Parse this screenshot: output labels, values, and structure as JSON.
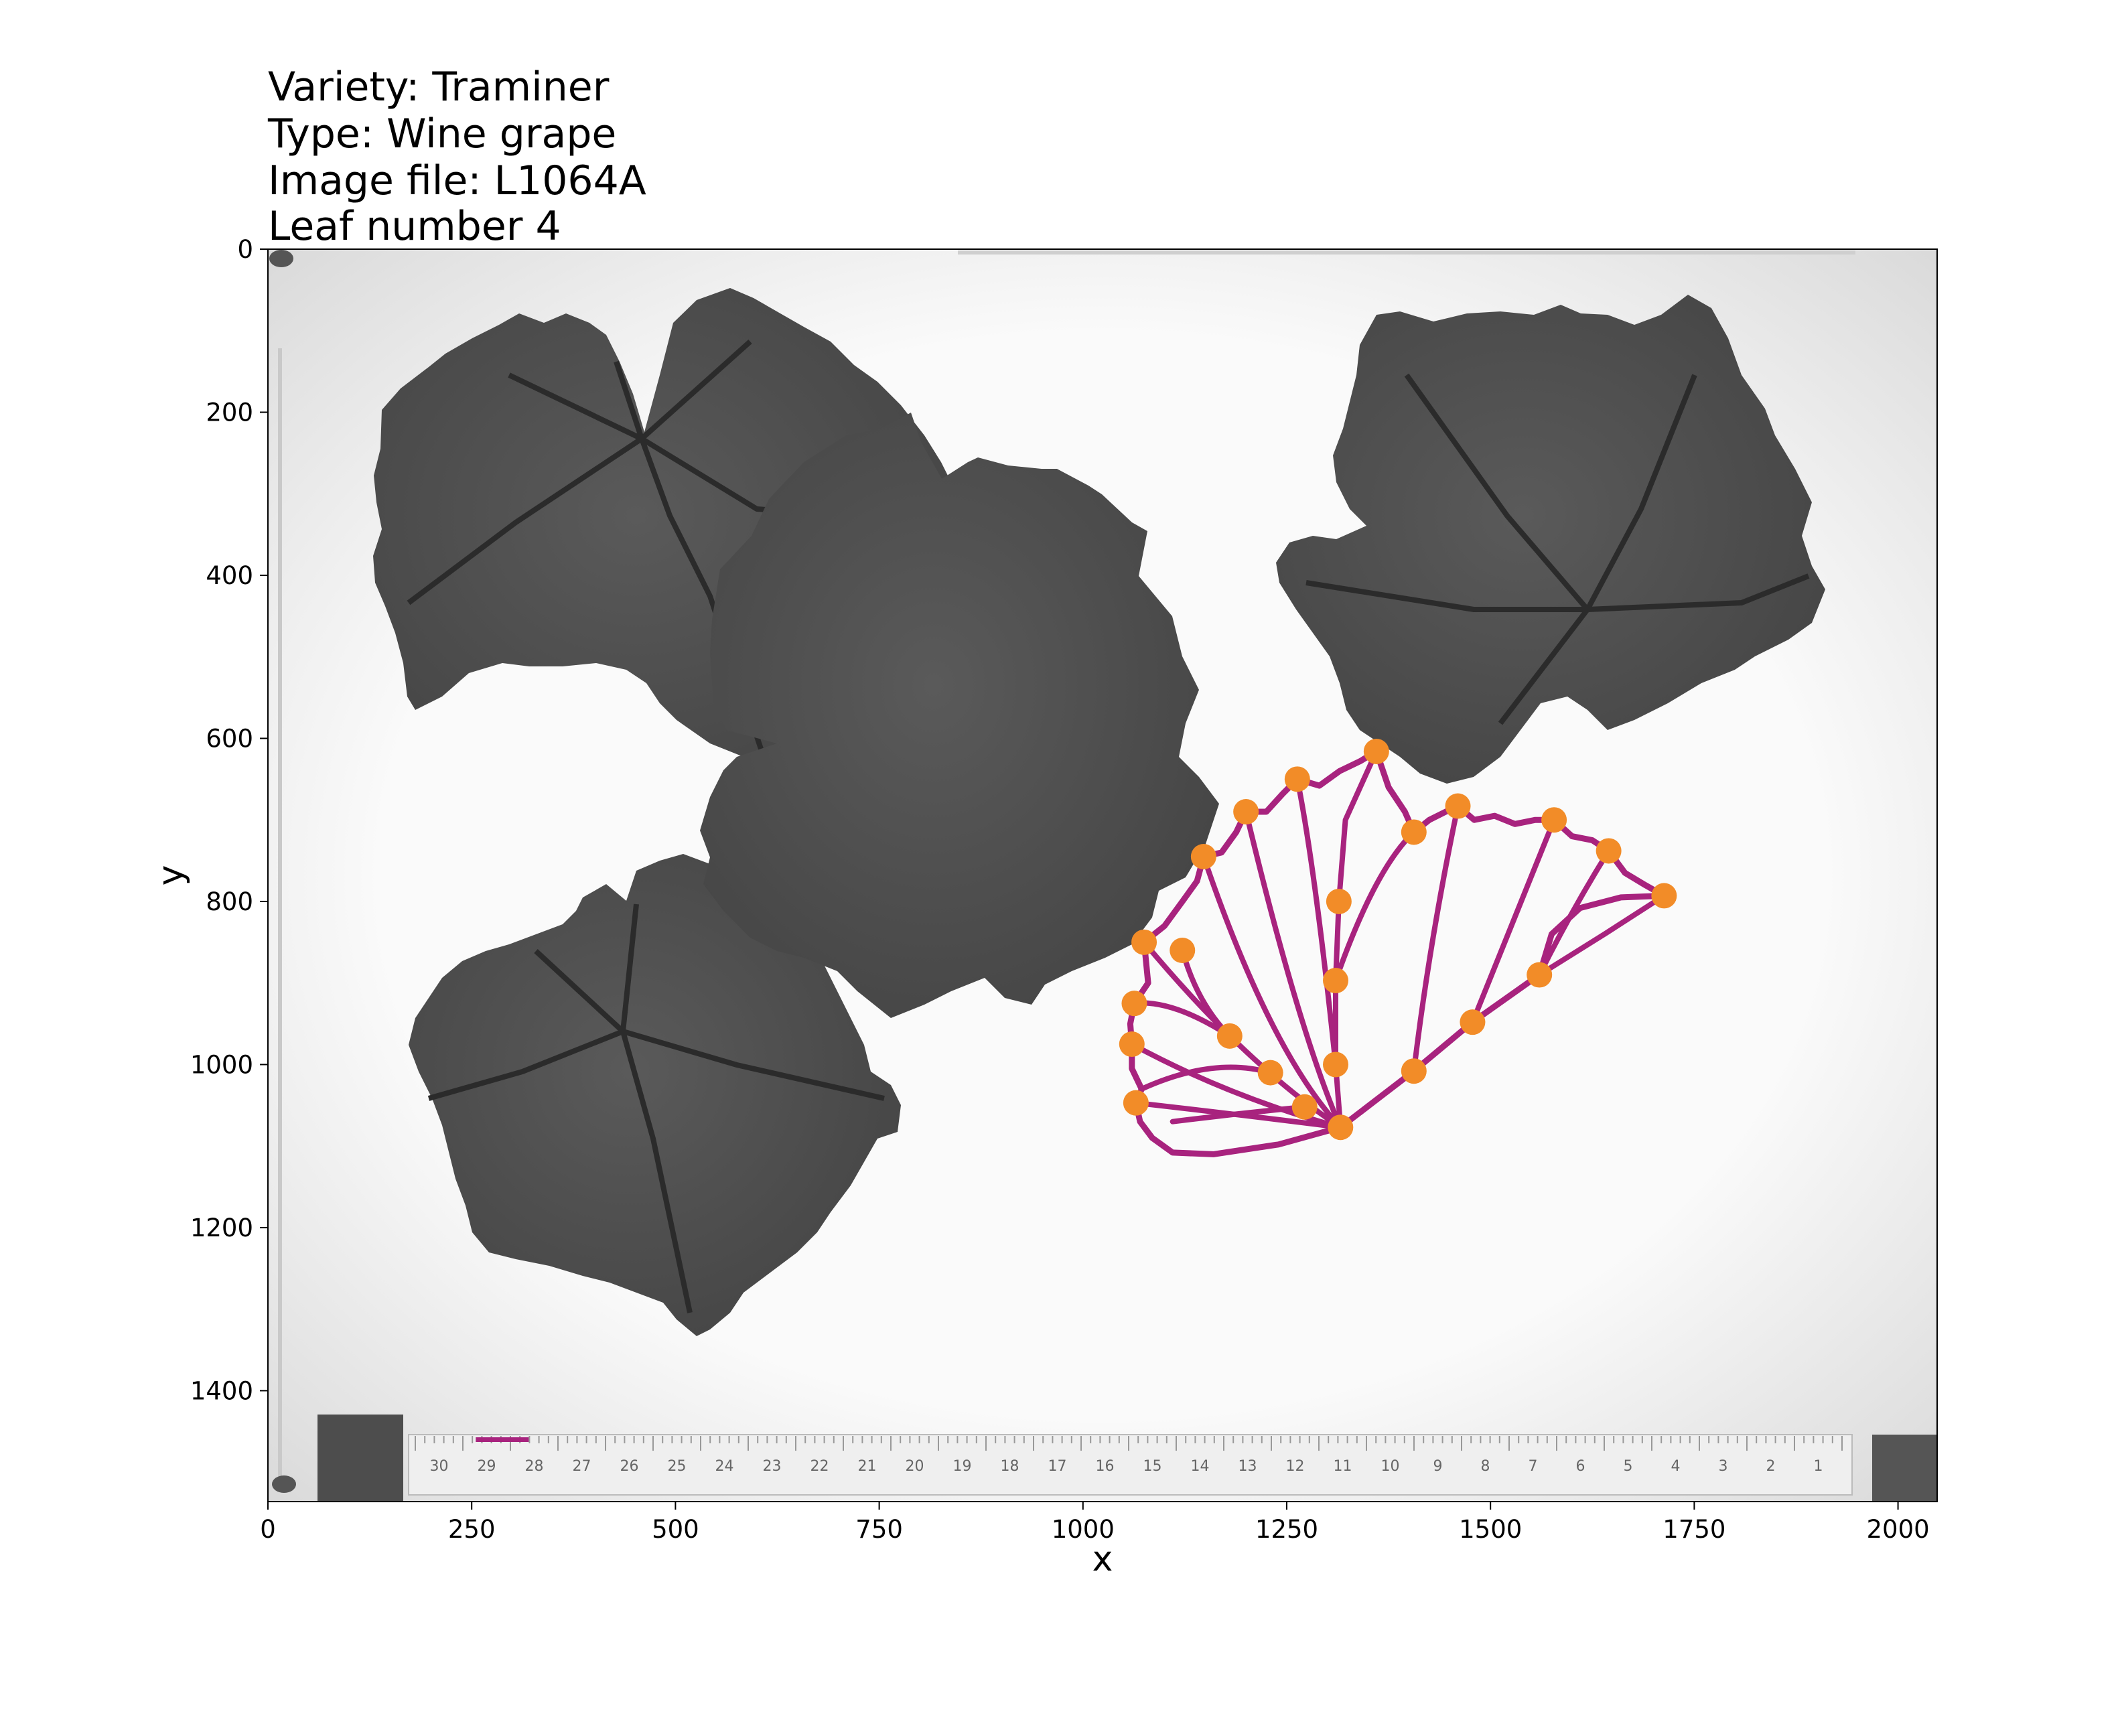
{
  "title_lines": [
    "Variety: Traminer",
    "Type: Wine grape",
    "Image file: L1064A",
    "Leaf number 4"
  ],
  "chart_data": {
    "type": "scatter",
    "xlabel": "x",
    "ylabel": "y",
    "xlim": [
      0,
      2048
    ],
    "ylim": [
      1536,
      0
    ],
    "x_ticks": [
      0,
      250,
      500,
      750,
      1000,
      1250,
      1500,
      1750,
      2000
    ],
    "y_ticks": [
      0,
      200,
      400,
      600,
      800,
      1000,
      1200,
      1400
    ],
    "grid": false,
    "landmark_color": "#f28c28",
    "outline_color": "#a8237e",
    "landmarks": [
      {
        "x": 1316,
        "y": 1077
      },
      {
        "x": 1310,
        "y": 1000
      },
      {
        "x": 1310,
        "y": 897
      },
      {
        "x": 1314,
        "y": 800
      },
      {
        "x": 1360,
        "y": 616
      },
      {
        "x": 1406,
        "y": 1008
      },
      {
        "x": 1478,
        "y": 948
      },
      {
        "x": 1560,
        "y": 890
      },
      {
        "x": 1713,
        "y": 793
      },
      {
        "x": 1645,
        "y": 738
      },
      {
        "x": 1578,
        "y": 700
      },
      {
        "x": 1460,
        "y": 683
      },
      {
        "x": 1406,
        "y": 715
      },
      {
        "x": 1263,
        "y": 650
      },
      {
        "x": 1200,
        "y": 690
      },
      {
        "x": 1148,
        "y": 745
      },
      {
        "x": 1075,
        "y": 850
      },
      {
        "x": 1122,
        "y": 860
      },
      {
        "x": 1063,
        "y": 925
      },
      {
        "x": 1060,
        "y": 975
      },
      {
        "x": 1065,
        "y": 1047
      },
      {
        "x": 1272,
        "y": 1052
      },
      {
        "x": 1230,
        "y": 1010
      },
      {
        "x": 1180,
        "y": 965
      }
    ],
    "outline": [
      [
        1316,
        1077
      ],
      [
        1240,
        1098
      ],
      [
        1160,
        1110
      ],
      [
        1110,
        1108
      ],
      [
        1085,
        1090
      ],
      [
        1070,
        1070
      ],
      [
        1065,
        1047
      ],
      [
        1072,
        1030
      ],
      [
        1060,
        1005
      ],
      [
        1060,
        975
      ],
      [
        1058,
        950
      ],
      [
        1063,
        925
      ],
      [
        1080,
        900
      ],
      [
        1075,
        850
      ],
      [
        1100,
        830
      ],
      [
        1122,
        800
      ],
      [
        1140,
        775
      ],
      [
        1148,
        745
      ],
      [
        1170,
        740
      ],
      [
        1188,
        715
      ],
      [
        1200,
        690
      ],
      [
        1225,
        690
      ],
      [
        1245,
        668
      ],
      [
        1263,
        650
      ],
      [
        1290,
        658
      ],
      [
        1315,
        640
      ],
      [
        1340,
        628
      ],
      [
        1360,
        616
      ],
      [
        1375,
        660
      ],
      [
        1395,
        690
      ],
      [
        1406,
        715
      ],
      [
        1425,
        700
      ],
      [
        1445,
        690
      ],
      [
        1460,
        683
      ],
      [
        1480,
        700
      ],
      [
        1505,
        695
      ],
      [
        1530,
        705
      ],
      [
        1555,
        700
      ],
      [
        1578,
        700
      ],
      [
        1600,
        720
      ],
      [
        1625,
        725
      ],
      [
        1645,
        738
      ],
      [
        1665,
        765
      ],
      [
        1690,
        780
      ],
      [
        1713,
        793
      ],
      [
        1660,
        795
      ],
      [
        1610,
        808
      ],
      [
        1575,
        840
      ],
      [
        1560,
        890
      ],
      [
        1478,
        948
      ],
      [
        1406,
        1008
      ],
      [
        1316,
        1077
      ]
    ],
    "veins": [
      [
        [
          1316,
          1077
        ],
        [
          1310,
          1000
        ],
        [
          1310,
          897
        ],
        [
          1314,
          800
        ],
        [
          1322,
          700
        ],
        [
          1360,
          616
        ]
      ],
      [
        [
          1316,
          1077
        ],
        [
          1406,
          1008
        ],
        [
          1478,
          948
        ],
        [
          1560,
          890
        ],
        [
          1640,
          840
        ],
        [
          1713,
          793
        ]
      ],
      [
        [
          1316,
          1077
        ],
        [
          1265,
          960
        ],
        [
          1200,
          690
        ]
      ],
      [
        [
          1316,
          1077
        ],
        [
          1230,
          985
        ],
        [
          1148,
          745
        ]
      ],
      [
        [
          1316,
          1077
        ],
        [
          1200,
          1000
        ],
        [
          1075,
          850
        ]
      ],
      [
        [
          1316,
          1077
        ],
        [
          1180,
          1040
        ],
        [
          1060,
          975
        ]
      ],
      [
        [
          1316,
          1077
        ],
        [
          1180,
          1060
        ],
        [
          1065,
          1047
        ]
      ],
      [
        [
          1310,
          1000
        ],
        [
          1285,
          760
        ],
        [
          1263,
          650
        ]
      ],
      [
        [
          1310,
          897
        ],
        [
          1358,
          760
        ],
        [
          1406,
          715
        ]
      ],
      [
        [
          1406,
          1008
        ],
        [
          1425,
          850
        ],
        [
          1460,
          683
        ]
      ],
      [
        [
          1478,
          948
        ],
        [
          1530,
          820
        ],
        [
          1578,
          700
        ]
      ],
      [
        [
          1560,
          890
        ],
        [
          1600,
          810
        ],
        [
          1645,
          738
        ]
      ],
      [
        [
          1180,
          965
        ],
        [
          1110,
          920
        ],
        [
          1063,
          925
        ]
      ],
      [
        [
          1122,
          860
        ],
        [
          1140,
          925
        ],
        [
          1180,
          965
        ]
      ],
      [
        [
          1230,
          1010
        ],
        [
          1160,
          990
        ],
        [
          1072,
          1030
        ]
      ],
      [
        [
          1272,
          1052
        ],
        [
          1190,
          1060
        ],
        [
          1110,
          1070
        ]
      ]
    ],
    "scale_bar": {
      "x": [
        255,
        320
      ],
      "y": 1460
    },
    "ruler_numbers": [
      "30",
      "29",
      "28",
      "27",
      "26",
      "25",
      "24",
      "23",
      "22",
      "21",
      "20",
      "19",
      "18",
      "17",
      "16",
      "15",
      "14",
      "13",
      "12",
      "11",
      "10",
      "9",
      "8",
      "7",
      "6",
      "5",
      "4",
      "3",
      "2",
      "1"
    ]
  }
}
